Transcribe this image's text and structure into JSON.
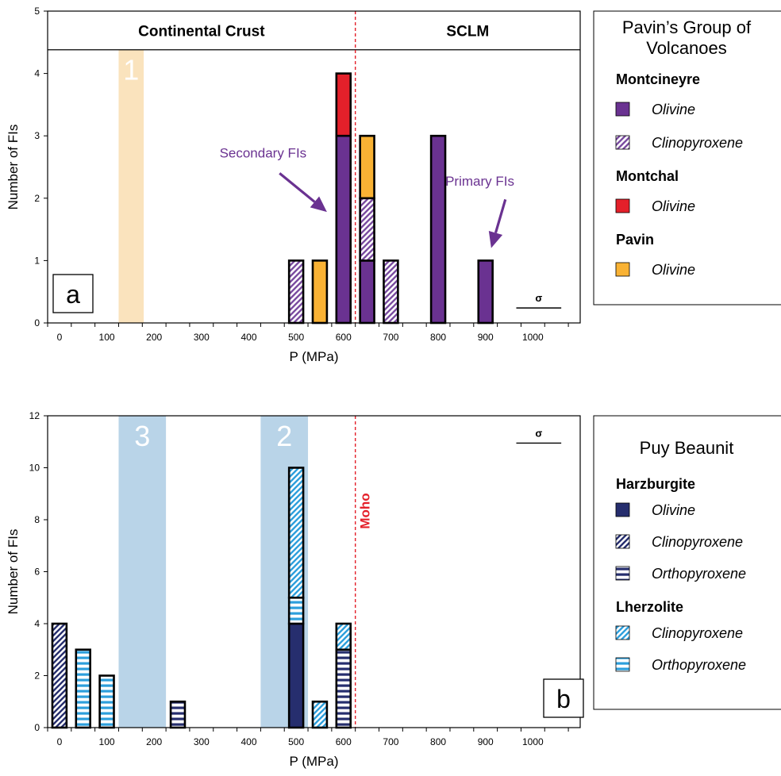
{
  "chart_data": [
    {
      "panel_id": "a",
      "type": "bar",
      "stacked": true,
      "xlabel": "P (MPa)",
      "ylabel": "Number of FIs",
      "xlim": [
        -25,
        1100
      ],
      "ylim": [
        0,
        5
      ],
      "x_ticks": [
        0,
        100,
        200,
        300,
        400,
        500,
        600,
        700,
        800,
        900,
        1000
      ],
      "y_ticks": [
        0,
        1,
        2,
        3,
        4,
        5
      ],
      "bar_width": 30,
      "grid": false,
      "header": {
        "ymin": 4.38,
        "left_label": "Continental Crust",
        "right_label": "SCLM"
      },
      "divider_x": 625,
      "shaded_bands": [
        {
          "label": "1",
          "x0": 125,
          "x1": 178,
          "color": "#fae3bd"
        }
      ],
      "annotations": [
        {
          "text": "Secondary FIs",
          "x": 430,
          "y": 2.65,
          "arrow_from": [
            465,
            2.4
          ],
          "arrow_to": [
            565,
            1.78
          ]
        },
        {
          "text": "Primary FIs",
          "x": 888,
          "y": 2.2,
          "arrow_from": [
            942,
            1.98
          ],
          "arrow_to": [
            912,
            1.2
          ]
        }
      ],
      "sigma": {
        "label": "σ",
        "x0": 965,
        "x1": 1060,
        "y": 0.24
      },
      "panel_label": "a",
      "series": [
        {
          "name": "Montcineyre Olivine",
          "color": "#6a3291",
          "pattern": "solid"
        },
        {
          "name": "Montcineyre Clinopyroxene",
          "color": "#7a4ca0",
          "pattern": "diag"
        },
        {
          "name": "Montchal Olivine",
          "color": "#e4202a",
          "pattern": "solid"
        },
        {
          "name": "Pavin Olivine",
          "color": "#f9b234",
          "pattern": "solid"
        }
      ],
      "bars": [
        {
          "x": 500,
          "segments": [
            {
              "series": 1,
              "count": 1
            }
          ]
        },
        {
          "x": 550,
          "segments": [
            {
              "series": 3,
              "count": 1
            }
          ]
        },
        {
          "x": 600,
          "segments": [
            {
              "series": 0,
              "count": 3
            },
            {
              "series": 2,
              "count": 1
            }
          ]
        },
        {
          "x": 650,
          "segments": [
            {
              "series": 0,
              "count": 1
            },
            {
              "series": 1,
              "count": 1
            },
            {
              "series": 3,
              "count": 1
            }
          ]
        },
        {
          "x": 700,
          "segments": [
            {
              "series": 1,
              "count": 1
            }
          ]
        },
        {
          "x": 800,
          "segments": [
            {
              "series": 0,
              "count": 3
            }
          ]
        },
        {
          "x": 900,
          "segments": [
            {
              "series": 0,
              "count": 1
            }
          ]
        }
      ],
      "legend": {
        "title": "Pavin’s Group of Volcanoes",
        "groups": [
          {
            "name": "Montcineyre",
            "entries": [
              {
                "label": "Olivine",
                "series": 0
              },
              {
                "label": "Clinopyroxene",
                "series": 1
              }
            ]
          },
          {
            "name": "Montchal",
            "entries": [
              {
                "label": "Olivine",
                "series": 2
              }
            ]
          },
          {
            "name": "Pavin",
            "entries": [
              {
                "label": "Olivine",
                "series": 3
              }
            ]
          }
        ]
      }
    },
    {
      "panel_id": "b",
      "type": "bar",
      "stacked": true,
      "xlabel": "P (MPa)",
      "ylabel": "Number of FIs",
      "xlim": [
        -25,
        1100
      ],
      "ylim": [
        0,
        12
      ],
      "x_ticks": [
        0,
        100,
        200,
        300,
        400,
        500,
        600,
        700,
        800,
        900,
        1000
      ],
      "y_ticks": [
        0,
        2,
        4,
        6,
        8,
        10,
        12
      ],
      "bar_width": 30,
      "grid": false,
      "divider_x": 625,
      "divider_label": "Moho",
      "shaded_bands": [
        {
          "label": "3",
          "x0": 125,
          "x1": 225,
          "color": "#b9d4e8"
        },
        {
          "label": "2",
          "x0": 425,
          "x1": 525,
          "color": "#b9d4e8"
        }
      ],
      "sigma": {
        "label": "σ",
        "x0": 965,
        "x1": 1060,
        "y": 10.95
      },
      "panel_label": "b",
      "series": [
        {
          "name": "Harzburgite Olivine",
          "color": "#262e6e",
          "pattern": "solid"
        },
        {
          "name": "Harzburgite Clinopyroxene",
          "color": "#262e6e",
          "pattern": "diag"
        },
        {
          "name": "Harzburgite Orthopyroxene",
          "color": "#262e6e",
          "pattern": "horiz"
        },
        {
          "name": "Lherzolite Clinopyroxene",
          "color": "#2d9fdc",
          "pattern": "diag"
        },
        {
          "name": "Lherzolite Orthopyroxene",
          "color": "#2d9fdc",
          "pattern": "horiz"
        }
      ],
      "bars": [
        {
          "x": 0,
          "segments": [
            {
              "series": 1,
              "count": 4
            }
          ]
        },
        {
          "x": 50,
          "segments": [
            {
              "series": 4,
              "count": 3
            }
          ]
        },
        {
          "x": 100,
          "segments": [
            {
              "series": 4,
              "count": 2
            }
          ]
        },
        {
          "x": 250,
          "segments": [
            {
              "series": 2,
              "count": 1
            }
          ]
        },
        {
          "x": 500,
          "segments": [
            {
              "series": 0,
              "count": 4
            },
            {
              "series": 4,
              "count": 1
            },
            {
              "series": 3,
              "count": 5
            }
          ]
        },
        {
          "x": 550,
          "segments": [
            {
              "series": 3,
              "count": 1
            }
          ]
        },
        {
          "x": 600,
          "segments": [
            {
              "series": 2,
              "count": 3
            },
            {
              "series": 3,
              "count": 1
            }
          ]
        }
      ],
      "legend": {
        "title": "Puy Beaunit",
        "groups": [
          {
            "name": "Harzburgite",
            "entries": [
              {
                "label": "Olivine",
                "series": 0
              },
              {
                "label": "Clinopyroxene",
                "series": 1
              },
              {
                "label": "Orthopyroxene",
                "series": 2
              }
            ]
          },
          {
            "name": "Lherzolite",
            "entries": [
              {
                "label": "Clinopyroxene",
                "series": 3
              },
              {
                "label": "Orthopyroxene",
                "series": 4
              }
            ]
          }
        ]
      }
    }
  ]
}
